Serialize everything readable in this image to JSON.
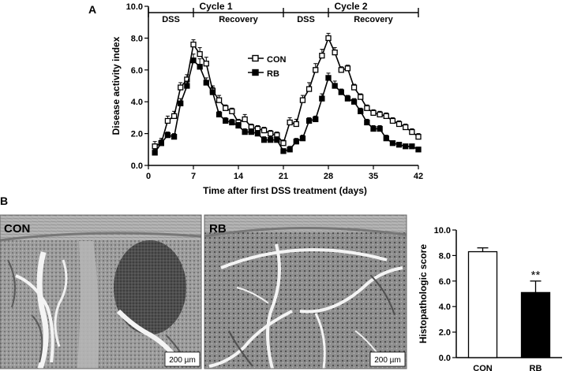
{
  "panels": {
    "a": "A",
    "b": "B"
  },
  "chart_data": [
    {
      "type": "line",
      "panel": "A",
      "title": "",
      "xlabel": "Time after first DSS treatment (days)",
      "ylabel": "Disease activity index",
      "xlim": [
        0,
        42
      ],
      "ylim": [
        0,
        10
      ],
      "xticks": [
        0,
        7,
        14,
        21,
        28,
        35,
        42
      ],
      "xtick_labels": [
        "0",
        "7",
        "14",
        "21",
        "28",
        "35",
        "42"
      ],
      "yticks": [
        0,
        2,
        4,
        6,
        8,
        10
      ],
      "ytick_labels": [
        "0.0",
        "2.0",
        "4.0",
        "6.0",
        "8.0",
        "10.0"
      ],
      "grid": false,
      "legend_position": "center-right",
      "phases": {
        "cycles": [
          {
            "label": "Cycle 1",
            "start": 0,
            "end": 21
          },
          {
            "label": "Cycle 2",
            "start": 21,
            "end": 42
          }
        ],
        "segments": [
          {
            "label": "DSS",
            "start": 0,
            "end": 7
          },
          {
            "label": "Recovery",
            "start": 7,
            "end": 21
          },
          {
            "label": "DSS",
            "start": 21,
            "end": 28
          },
          {
            "label": "Recovery",
            "start": 28,
            "end": 42
          }
        ]
      },
      "x": [
        1,
        2,
        3,
        4,
        5,
        6,
        7,
        8,
        9,
        10,
        11,
        12,
        13,
        14,
        15,
        16,
        17,
        18,
        19,
        20,
        21,
        22,
        23,
        24,
        25,
        26,
        27,
        28,
        29,
        30,
        31,
        32,
        33,
        34,
        35,
        36,
        37,
        38,
        39,
        40,
        41,
        42
      ],
      "series": [
        {
          "name": "CON",
          "marker": "open-square",
          "color": "#000000",
          "values": [
            1.2,
            1.4,
            2.8,
            3.1,
            4.9,
            5.4,
            7.6,
            7.0,
            6.4,
            4.7,
            4.1,
            3.6,
            3.4,
            2.7,
            2.9,
            2.4,
            2.3,
            2.2,
            2.0,
            1.9,
            1.4,
            2.7,
            2.6,
            4.1,
            4.8,
            6.0,
            6.9,
            8.0,
            7.1,
            6.0,
            6.1,
            4.9,
            4.3,
            3.6,
            3.3,
            3.2,
            3.1,
            2.8,
            2.6,
            2.4,
            2.1,
            1.8
          ],
          "errors": [
            0.3,
            0.3,
            0.3,
            0.3,
            0.3,
            0.3,
            0.3,
            0.4,
            0.4,
            0.3,
            0.3,
            0.2,
            0.2,
            0.2,
            0.3,
            0.2,
            0.2,
            0.2,
            0.2,
            0.2,
            0.2,
            0.3,
            0.3,
            0.3,
            0.4,
            0.4,
            0.4,
            0.3,
            0.3,
            0.2,
            0.2,
            0.2,
            0.2,
            0.2,
            0.2,
            0.2,
            0.2,
            0.2,
            0.2,
            0.2,
            0.2,
            0.2
          ]
        },
        {
          "name": "RB",
          "marker": "filled-square",
          "color": "#000000",
          "values": [
            0.8,
            1.4,
            1.9,
            1.8,
            3.9,
            5.0,
            6.6,
            6.2,
            5.2,
            4.6,
            3.2,
            2.8,
            2.7,
            2.5,
            2.1,
            2.1,
            2.0,
            1.6,
            1.6,
            1.6,
            0.9,
            1.0,
            1.5,
            1.7,
            2.8,
            2.9,
            4.2,
            5.5,
            5.0,
            4.6,
            4.2,
            4.0,
            3.4,
            2.7,
            2.3,
            2.3,
            1.7,
            1.4,
            1.3,
            1.2,
            1.2,
            1.0
          ],
          "errors": [
            0.2,
            0.2,
            0.2,
            0.2,
            0.3,
            0.3,
            0.4,
            0.5,
            0.3,
            0.3,
            0.2,
            0.2,
            0.2,
            0.2,
            0.2,
            0.2,
            0.2,
            0.2,
            0.2,
            0.2,
            0.1,
            0.2,
            0.2,
            0.2,
            0.2,
            0.2,
            0.3,
            0.3,
            0.3,
            0.2,
            0.2,
            0.2,
            0.2,
            0.2,
            0.2,
            0.2,
            0.2,
            0.1,
            0.1,
            0.1,
            0.1,
            0.1
          ]
        }
      ]
    },
    {
      "type": "bar",
      "panel": "B",
      "title": "",
      "xlabel": "",
      "ylabel": "Histopathologic score",
      "categories": [
        "CON",
        "RB"
      ],
      "values": [
        8.3,
        5.1
      ],
      "errors": [
        0.3,
        0.9
      ],
      "fills": [
        "#ffffff",
        "#000000"
      ],
      "annotations": [
        "",
        "**"
      ],
      "ylim": [
        0,
        10
      ],
      "yticks": [
        0,
        2,
        4,
        6,
        8,
        10
      ],
      "ytick_labels": [
        "0.0",
        "2.0",
        "4.0",
        "6.0",
        "8.0",
        "10.0"
      ],
      "grid": false
    }
  ],
  "micrographs": [
    {
      "label": "CON",
      "scale_bar": "200 µm"
    },
    {
      "label": "RB",
      "scale_bar": "200 µm"
    }
  ]
}
